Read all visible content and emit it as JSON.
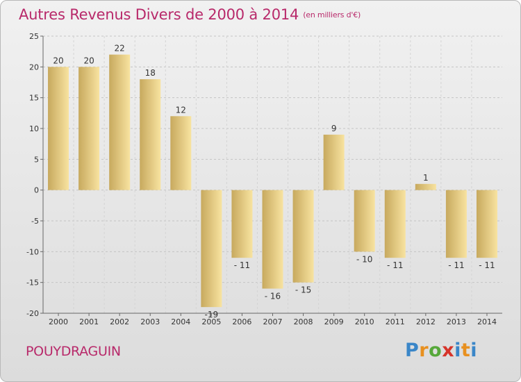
{
  "header": {
    "title": "Autres Revenus Divers de 2000 à 2014",
    "unit": "(en milliers d'€)"
  },
  "footer": {
    "town": "POUYDRAGUIN",
    "logo": [
      "P",
      "r",
      "o",
      "x",
      "i",
      "t",
      "i"
    ]
  },
  "colors": {
    "title": "#b8296a",
    "bar_dark": "#c7a95e",
    "bar_light": "#f8e3a0",
    "background_top": "#f1f1f1",
    "background_bottom": "#dcdcdc"
  },
  "chart_data": {
    "type": "bar",
    "title": "Autres Revenus Divers de 2000 à 2014",
    "subtitle": "(en milliers d'€)",
    "xlabel": "",
    "ylabel": "",
    "categories": [
      "2000",
      "2001",
      "2002",
      "2003",
      "2004",
      "2005",
      "2006",
      "2007",
      "2008",
      "2009",
      "2010",
      "2011",
      "2012",
      "2013",
      "2014"
    ],
    "values": [
      20,
      20,
      22,
      18,
      12,
      -19,
      -11,
      -16,
      -15,
      9,
      -10,
      -11,
      1,
      -11,
      -11
    ],
    "labels": [
      "20",
      "20",
      "22",
      "18",
      "12",
      "-19",
      "- 11",
      "- 16",
      "- 15",
      "9",
      "- 10",
      "- 11",
      "1",
      "- 11",
      "- 11"
    ],
    "ylim": [
      -20,
      25
    ],
    "yticks": [
      -20,
      -15,
      -10,
      -5,
      0,
      5,
      10,
      15,
      20,
      25
    ],
    "grid": "horizontal-dashed",
    "legend": "none"
  }
}
